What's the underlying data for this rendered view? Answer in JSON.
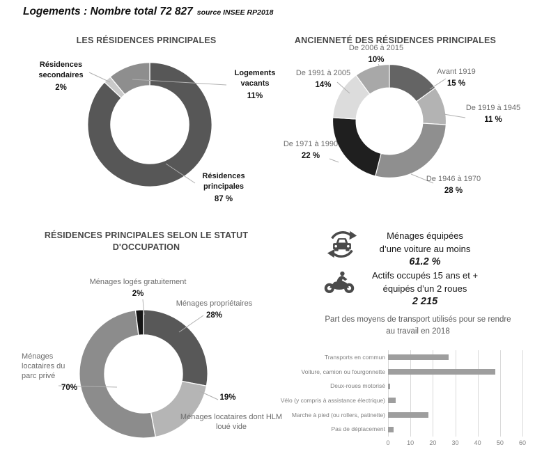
{
  "header": {
    "title": "Logements : Nombre total 72 827",
    "source": "source INSEE RP2018"
  },
  "vehicle_stats": [
    {
      "icon": "car-sync-icon",
      "line1": "Ménages équipées",
      "line2": "d’une voiture au moins",
      "value": "61.2 %"
    },
    {
      "icon": "motorcycle-icon",
      "line1": "Actifs occupés 15 ans et +",
      "line2": "équipés d’un 2 roues",
      "value": "2 215"
    }
  ],
  "chart_data": [
    {
      "id": "residences",
      "type": "donut",
      "title": "LES RÉSIDENCES PRINCIPALES",
      "segments": [
        {
          "label": "Résidences principales",
          "value": 87,
          "pct_label": "87 %",
          "color": "#575757"
        },
        {
          "label": "Résidences secondaires",
          "value": 2,
          "pct_label": "2%",
          "color": "#c9c9c9"
        },
        {
          "label": "Logements vacants",
          "value": 11,
          "pct_label": "11%",
          "color": "#8e8e8e"
        }
      ]
    },
    {
      "id": "anciennete",
      "type": "donut",
      "title": "ANCIENNETÉ DES RÉSIDENCES PRINCIPALES",
      "segments": [
        {
          "label": "Avant 1919",
          "value": 15,
          "pct_label": "15 %",
          "color": "#646464"
        },
        {
          "label": "De 1919 à 1945",
          "value": 11,
          "pct_label": "11 %",
          "color": "#b3b3b3"
        },
        {
          "label": "De 1946 à 1970",
          "value": 28,
          "pct_label": "28  %",
          "color": "#8f8f8f"
        },
        {
          "label": "De 1971 à 1990",
          "value": 22,
          "pct_label": "22 %",
          "color": "#1f1f1f"
        },
        {
          "label": "De 1991 à 2005",
          "value": 14,
          "pct_label": "14%",
          "color": "#dcdcdc"
        },
        {
          "label": "De 2006 à 2015",
          "value": 10,
          "pct_label": "10%",
          "color": "#a8a8a8"
        }
      ]
    },
    {
      "id": "statut-occupation",
      "type": "donut",
      "title": "RÉSIDENCES PRINCIPALES SELON LE STATUT D'OCCUPATION",
      "segments": [
        {
          "label": "Ménages propriétaires",
          "value": 28,
          "pct_label": "28%",
          "color": "#585858"
        },
        {
          "label": "Ménages locataires dont HLM loué vide",
          "value": 19,
          "pct_label": "19%",
          "color": "#b5b5b5"
        },
        {
          "label": "Ménages locataires du parc privé",
          "value": 51,
          "pct_label": "70%",
          "color": "#8c8c8c"
        },
        {
          "label": "Ménages logés gratuitement",
          "value": 2,
          "pct_label": "2%",
          "color": "#161616"
        }
      ]
    },
    {
      "id": "transport",
      "type": "bar",
      "title": "Part des moyens de transport utilisés pour se rendre au travail en 2018",
      "categories": [
        "Transports en commun",
        "Voiture, camion ou fourgonnette",
        "Deux-roues motorisé",
        "Vélo (y compris à assistance électrique)",
        "Marche à pied (ou rollers, patinette)",
        "Pas de déplacement"
      ],
      "values": [
        27,
        48,
        1,
        3.5,
        18,
        2.5
      ],
      "xlim": [
        0,
        60
      ],
      "xticks": [
        0,
        10,
        20,
        30,
        40,
        50,
        60
      ],
      "bar_color": "#9e9e9e",
      "gridline_color": "#d9d9d9"
    }
  ]
}
